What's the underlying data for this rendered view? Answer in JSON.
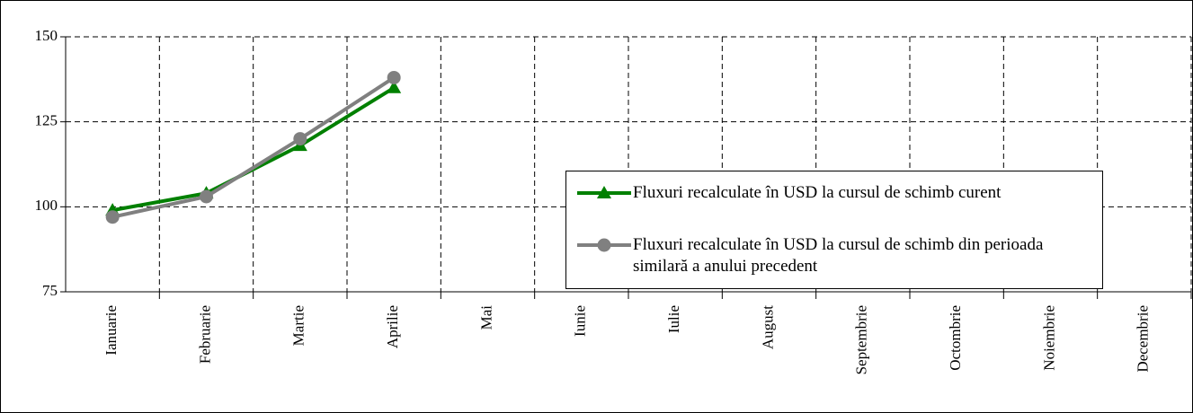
{
  "chart_data": {
    "type": "line",
    "categories": [
      "Ianuarie",
      "Februarie",
      "Martie",
      "Aprilie",
      "Mai",
      "Iunie",
      "Iulie",
      "August",
      "Septembrie",
      "Octombrie",
      "Noiembrie",
      "Decembrie"
    ],
    "series": [
      {
        "name": "Fluxuri recalculate în USD la cursul de schimb curent",
        "color": "#008000",
        "marker": "triangle",
        "values": [
          99,
          104,
          118,
          135,
          null,
          null,
          null,
          null,
          null,
          null,
          null,
          null
        ]
      },
      {
        "name": "Fluxuri recalculate în USD la cursul de schimb din perioada similară a anului precedent",
        "color": "#808080",
        "marker": "circle",
        "values": [
          97,
          103,
          120,
          138,
          null,
          null,
          null,
          null,
          null,
          null,
          null,
          null
        ]
      }
    ],
    "ylim": [
      75,
      150
    ],
    "yticks": [
      75,
      100,
      125,
      150
    ],
    "grid": true
  }
}
